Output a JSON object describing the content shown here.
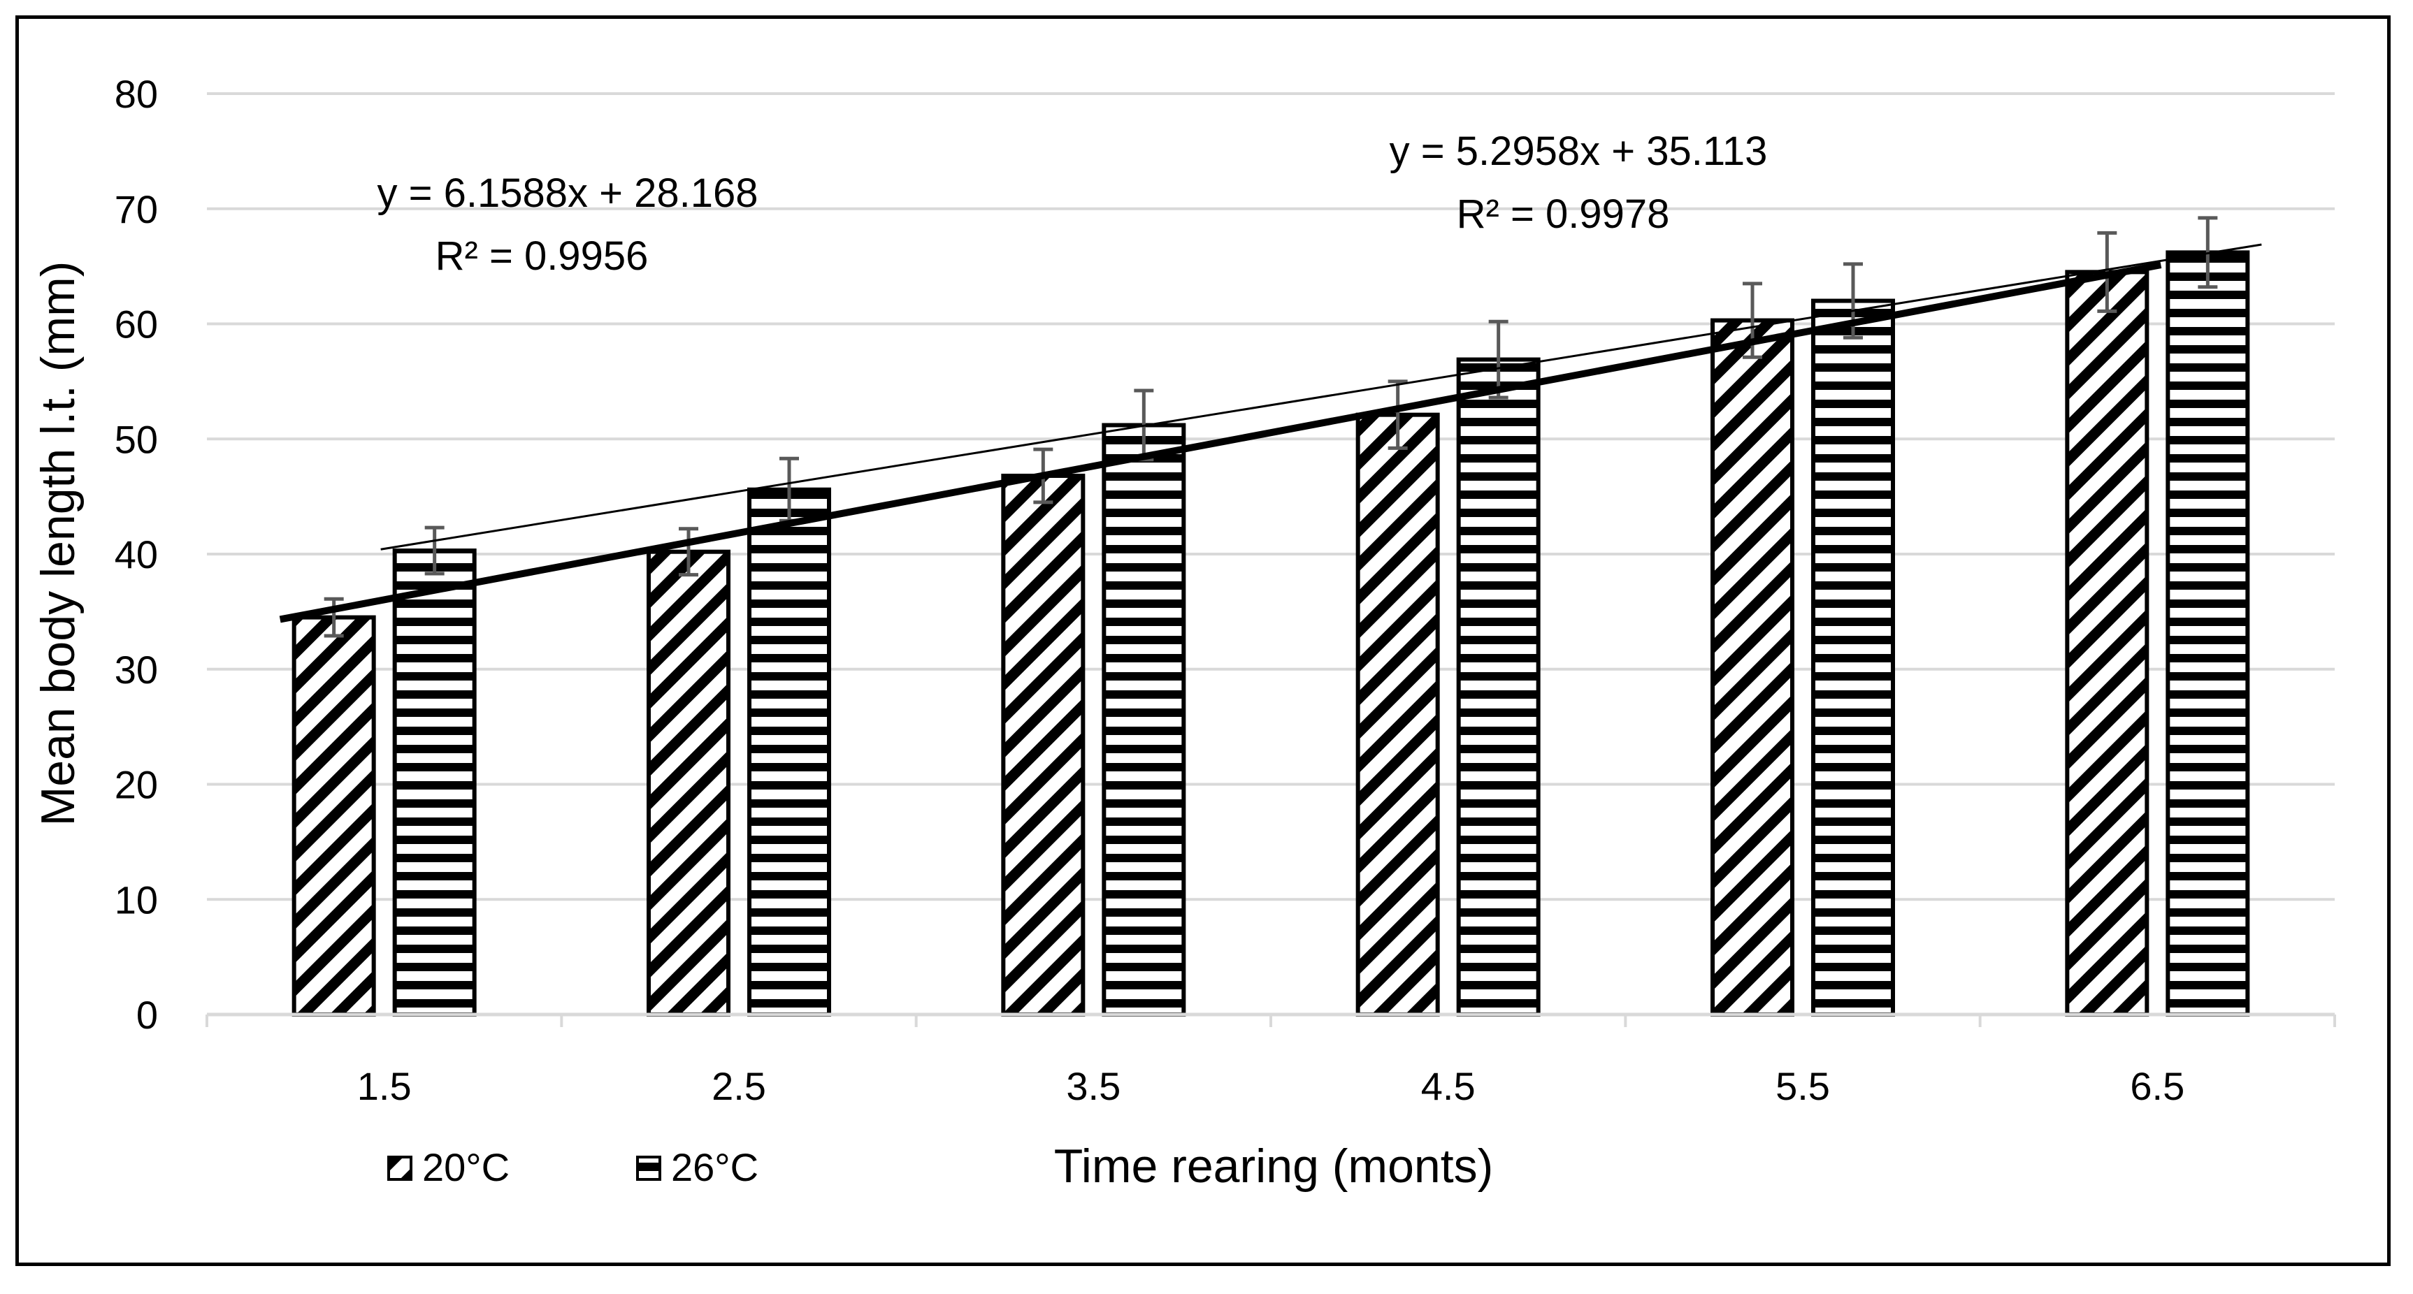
{
  "chart_data": {
    "type": "bar",
    "title": "",
    "xlabel": "Time rearing (monts)",
    "ylabel": "Mean body length l.t. (mm)",
    "categories": [
      "1.5",
      "2.5",
      "3.5",
      "4.5",
      "5.5",
      "6.5"
    ],
    "ylim": [
      0,
      80
    ],
    "yticks": [
      "0",
      "10",
      "20",
      "30",
      "40",
      "50",
      "60",
      "70",
      "80"
    ],
    "grid": true,
    "legend_position": "bottom-left",
    "series": [
      {
        "name": "20°C",
        "pattern": "diagonal-stripes",
        "values": [
          34.5,
          40.2,
          46.8,
          52.1,
          60.3,
          64.5
        ],
        "errors": [
          1.6,
          2.0,
          2.3,
          2.9,
          3.2,
          3.4
        ],
        "trendline": {
          "slope": 6.1588,
          "intercept": 28.168,
          "r2": 0.9956,
          "style": "thick"
        }
      },
      {
        "name": "26°C",
        "pattern": "horizontal-stripes",
        "values": [
          40.3,
          45.6,
          51.2,
          56.9,
          62.0,
          66.2
        ],
        "errors": [
          2.0,
          2.7,
          3.0,
          3.3,
          3.2,
          3.0
        ],
        "trendline": {
          "slope": 5.2958,
          "intercept": 35.113,
          "r2": 0.9978,
          "style": "thin"
        }
      }
    ],
    "annotations": {
      "eq1": "y = 6.1588x + 28.168",
      "r2_1": "R² = 0.9956",
      "eq2": "y = 5.2958x + 35.113",
      "r2_2": "R² = 0.9978"
    },
    "colors": {
      "bar_fill": "#ffffff",
      "stroke": "#000000",
      "grid": "#d9d9d9",
      "error_bar": "#595959"
    }
  }
}
